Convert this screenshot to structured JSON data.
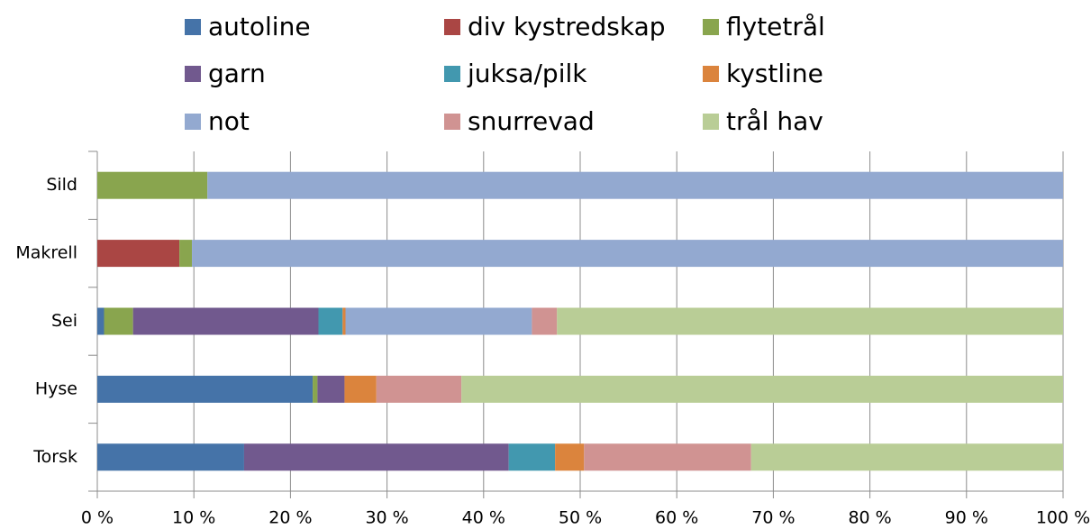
{
  "chart_data": {
    "type": "stacked-bar-horizontal",
    "categories": [
      "Sild",
      "Makrell",
      "Sei",
      "Hyse",
      "Torsk"
    ],
    "series": [
      {
        "name": "autoline",
        "color": "#4573a8",
        "values": [
          0,
          0,
          0.7,
          22.3,
          15.2
        ]
      },
      {
        "name": "div kystredskap",
        "color": "#aa4644",
        "values": [
          0,
          8.5,
          0,
          0,
          0
        ]
      },
      {
        "name": "flytetrål",
        "color": "#89a54e",
        "values": [
          11.4,
          1.3,
          3.0,
          0.5,
          0
        ]
      },
      {
        "name": "garn",
        "color": "#71598e",
        "values": [
          0,
          0,
          19.2,
          2.8,
          27.4
        ]
      },
      {
        "name": "juksa/pilk",
        "color": "#4298af",
        "values": [
          0,
          0,
          2.5,
          0,
          4.8
        ]
      },
      {
        "name": "kystline",
        "color": "#db843d",
        "values": [
          0,
          0,
          0.3,
          3.3,
          3.0
        ]
      },
      {
        "name": "not",
        "color": "#93a9d0",
        "values": [
          88.6,
          90.2,
          19.3,
          0,
          0
        ]
      },
      {
        "name": "snurrevad",
        "color": "#d09392",
        "values": [
          0,
          0,
          2.6,
          8.8,
          17.3
        ]
      },
      {
        "name": "trål hav",
        "color": "#b9cd96",
        "values": [
          0,
          0,
          52.4,
          62.3,
          32.3
        ]
      }
    ],
    "xlim": [
      0,
      100
    ],
    "xticks": [
      {
        "value": 0,
        "label": "0 %"
      },
      {
        "value": 10,
        "label": "10 %"
      },
      {
        "value": 20,
        "label": "20 %"
      },
      {
        "value": 30,
        "label": "30 %"
      },
      {
        "value": 40,
        "label": "40 %"
      },
      {
        "value": 50,
        "label": "50 %"
      },
      {
        "value": 60,
        "label": "60 %"
      },
      {
        "value": 70,
        "label": "70 %"
      },
      {
        "value": 80,
        "label": "80 %"
      },
      {
        "value": 90,
        "label": "90 %"
      },
      {
        "value": 100,
        "label": "100 %"
      }
    ],
    "grid": true,
    "legend": "top"
  }
}
